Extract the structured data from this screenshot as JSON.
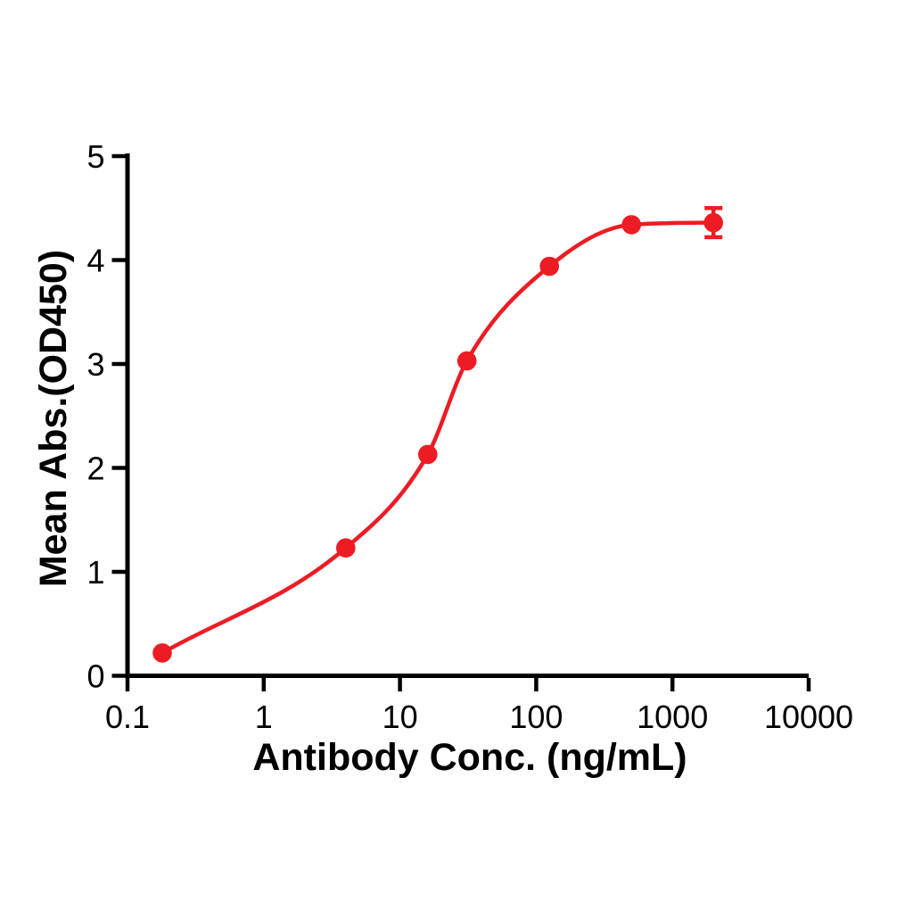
{
  "figure": {
    "background": "#ffffff",
    "axis_color": "#000000",
    "accent_red": "#ED1C24"
  },
  "chart_data": {
    "type": "scatter",
    "title": "",
    "xlabel": "Antibody Conc. (ng/mL)",
    "ylabel": "Mean Abs.(OD450)",
    "x_scale": "log10",
    "xlim": [
      0.1,
      10000
    ],
    "ylim": [
      0,
      5
    ],
    "x_ticks": [
      0.1,
      1,
      10,
      100,
      1000,
      10000
    ],
    "x_tick_labels": [
      "0.1",
      "1",
      "10",
      "100",
      "1000",
      "10000"
    ],
    "y_ticks": [
      0,
      1,
      2,
      3,
      4,
      5
    ],
    "y_tick_labels": [
      "0",
      "1",
      "2",
      "3",
      "4",
      "5"
    ],
    "grid": false,
    "legend": "none",
    "series": [
      {
        "name": "Mean Abs.(OD450)",
        "color": "#ED1C24",
        "marker": "circle",
        "line": "sigmoidal-fit",
        "x": [
          0.18,
          4,
          16,
          31,
          125,
          500,
          2000
        ],
        "y": [
          0.22,
          1.23,
          2.13,
          3.03,
          3.94,
          4.34,
          4.36
        ],
        "y_err": [
          0,
          0,
          0,
          0,
          0,
          0,
          0.14
        ]
      }
    ]
  }
}
